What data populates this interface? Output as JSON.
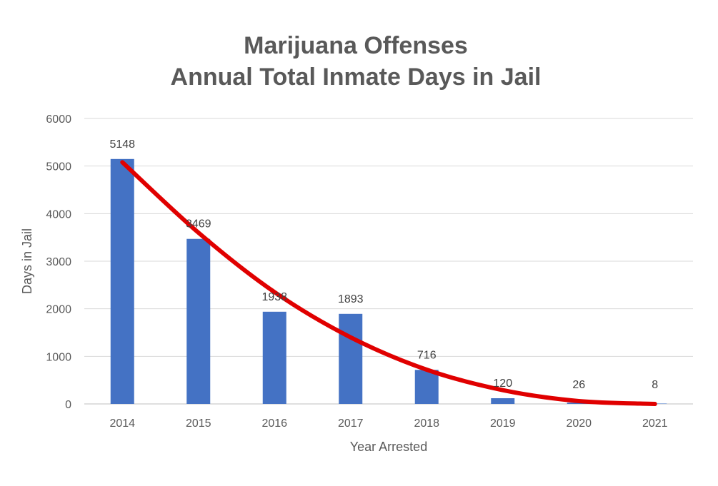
{
  "chart_data": {
    "type": "bar",
    "title_lines": [
      "Marijuana Offenses",
      "Annual Total Inmate Days in Jail"
    ],
    "xlabel": "Year Arrested",
    "ylabel": "Days in Jail",
    "categories": [
      "2014",
      "2015",
      "2016",
      "2017",
      "2018",
      "2019",
      "2020",
      "2021"
    ],
    "values": [
      5148,
      3469,
      1938,
      1893,
      716,
      120,
      26,
      8
    ],
    "ylim": [
      0,
      6000
    ],
    "yticks": [
      0,
      1000,
      2000,
      3000,
      4000,
      5000,
      6000
    ],
    "grid": true,
    "legend": "none",
    "bar_color": "#4472C4",
    "trendline": {
      "type": "polynomial",
      "color": "#E00000",
      "values": [
        5080,
        3600,
        2350,
        1400,
        720,
        290,
        60,
        0
      ]
    }
  }
}
